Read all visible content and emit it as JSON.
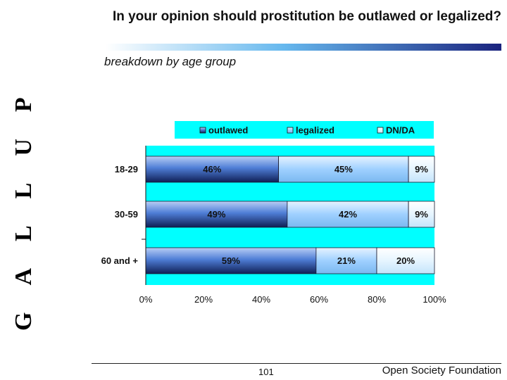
{
  "brand": {
    "vertical_text": "GALLUP"
  },
  "header": {
    "title": "In your opinion should prostitution be outlawed or legalized?",
    "subtitle": "breakdown by age group"
  },
  "footer": {
    "page_number": "101",
    "organization": "Open Society Foundation"
  },
  "chart_data": {
    "type": "bar",
    "orientation": "horizontal",
    "stacked": true,
    "categories": [
      "18-29",
      "30-59",
      "60 and +"
    ],
    "series": [
      {
        "name": "outlawed",
        "values": [
          46,
          49,
          59
        ],
        "color": "#6699ff"
      },
      {
        "name": "legalized",
        "values": [
          45,
          42,
          21
        ],
        "color": "#99ccff"
      },
      {
        "name": "DN/DA",
        "values": [
          9,
          9,
          20
        ],
        "color": "#ddf0ff"
      }
    ],
    "data_labels": [
      [
        "46%",
        "45%",
        "9%"
      ],
      [
        "49%",
        "42%",
        "9%"
      ],
      [
        "59%",
        "21%",
        "20%"
      ]
    ],
    "x_ticks": [
      "0%",
      "20%",
      "40%",
      "60%",
      "80%",
      "100%"
    ],
    "xlim": [
      0,
      100
    ],
    "plot_background": "#00ffff",
    "legend_position": "top",
    "grid": false
  }
}
